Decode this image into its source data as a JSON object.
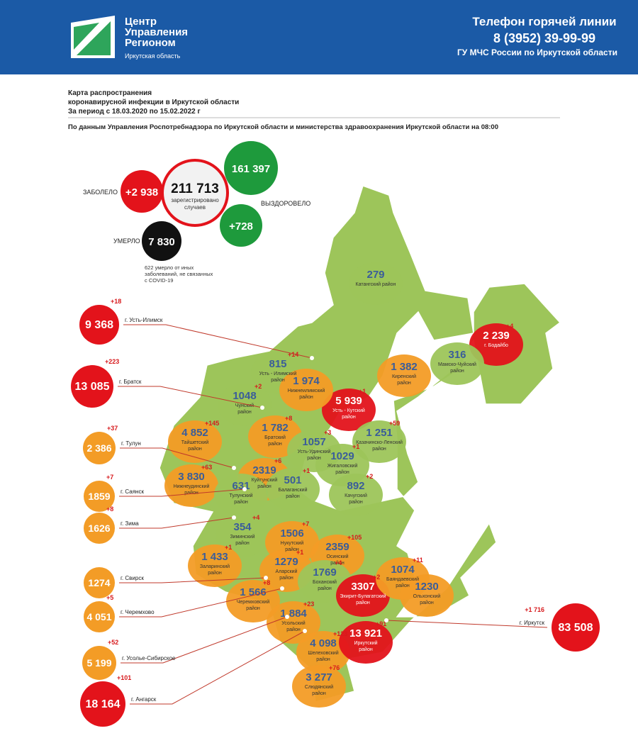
{
  "header": {
    "logo": [
      "Центр",
      "Управления",
      "Регионом"
    ],
    "region": "Иркутская область",
    "hotline_title": "Телефон горячей линии",
    "phone": "8 (3952) 39-99-99",
    "org": "ГУ МЧС России по Иркутской области"
  },
  "title": {
    "lines": [
      "Карта распространения",
      "коронавирусной инфекции в Иркутской области",
      "За период с 18.03.2020 по 15.02.2022 г"
    ],
    "source": "По данным Управления Роспотребнадзора по Иркутской области и министерства здравоохранения Иркутской области на 08:00"
  },
  "summary": {
    "infected_label": "ЗАБОЛЕЛО",
    "infected_new": "+2 938",
    "total": "211 713",
    "total_note": [
      "зарегистрировано",
      "случаев"
    ],
    "recovered": "161 397",
    "recovered_label": "ВЫЗДОРОВЕЛО",
    "recovered_new": "+728",
    "died_label": "УМЕРЛО",
    "died": "7 830",
    "other_deaths": [
      "622 умерло от иных",
      "заболеваний, не связанных",
      "с COVID-19"
    ]
  },
  "districts": [
    {
      "value": "279",
      "name": [
        "Катангский район"
      ]
    },
    {
      "value": "2 239",
      "change": "+4",
      "name": [
        "г. Бодайбо"
      ]
    },
    {
      "value": "316",
      "name": [
        "Мамско-Чуйский",
        "район"
      ]
    },
    {
      "value": "1 382",
      "name": [
        "Киренский",
        "район"
      ]
    },
    {
      "value": "5 939",
      "change": "+1",
      "name": [
        "Усть - Кутский",
        "район"
      ]
    },
    {
      "value": "815",
      "change": "+14",
      "name": [
        "Усть - Илимский",
        "район"
      ]
    },
    {
      "value": "1048",
      "change": "+2",
      "name": [
        "Чунский",
        "район"
      ]
    },
    {
      "value": "1 974",
      "name": [
        "Нижнеилимский",
        "район"
      ]
    },
    {
      "value": "1 782",
      "change": "+8",
      "name": [
        "Братский",
        "район"
      ]
    },
    {
      "value": "1 251",
      "change": "+59",
      "name": [
        "Казачинско-Ленский",
        "район"
      ]
    },
    {
      "value": "4 852",
      "change": "+145",
      "name": [
        "Тайшетский",
        "район"
      ]
    },
    {
      "value": "1057",
      "change": "+3",
      "name": [
        "Усть-Удинский",
        "район"
      ]
    },
    {
      "value": "1029",
      "change": "+1",
      "name": [
        "Жигаловский",
        "район"
      ]
    },
    {
      "value": "3 830",
      "change": "+63",
      "name": [
        "Нижнеудинский",
        "район"
      ]
    },
    {
      "value": "2319",
      "change": "+6",
      "name": [
        "Куйтунский",
        "район"
      ]
    },
    {
      "value": "631",
      "name": [
        "Тулунский",
        "район"
      ]
    },
    {
      "value": "501",
      "change": "+1",
      "name": [
        "Балаганский",
        "район"
      ]
    },
    {
      "value": "892",
      "change": "+2",
      "name": [
        "Качугский",
        "район"
      ]
    },
    {
      "value": "354",
      "change": "+4",
      "name": [
        "Зиминский",
        "район"
      ]
    },
    {
      "value": "1506",
      "change": "+7",
      "name": [
        "Нукутский",
        "район"
      ]
    },
    {
      "value": "2359",
      "change": "+105",
      "name": [
        "Осинский",
        "район"
      ]
    },
    {
      "value": "1 433",
      "change": "+1",
      "name": [
        "Заларинский",
        "район"
      ]
    },
    {
      "value": "1279",
      "change": "+1",
      "name": [
        "Аларский",
        "район"
      ]
    },
    {
      "value": "1769",
      "change": "+4",
      "name": [
        "Боханский",
        "район"
      ]
    },
    {
      "value": "3307",
      "change": "+2",
      "name": [
        "Эхирит-Булагатский",
        "район"
      ]
    },
    {
      "value": "1074",
      "change": "+11",
      "name": [
        "Баяндаевский",
        "район"
      ]
    },
    {
      "value": "1230",
      "name": [
        "Ольхонский",
        "район"
      ]
    },
    {
      "value": "1 566",
      "change": "+8",
      "name": [
        "Черемховский",
        "район"
      ]
    },
    {
      "value": "1 884",
      "change": "+23",
      "name": [
        "Усольский",
        "район"
      ]
    },
    {
      "value": "4 098",
      "change": "+123",
      "name": [
        "Шелеховский",
        "район"
      ]
    },
    {
      "value": "13 921",
      "change": "+91",
      "name": [
        "Иркутский",
        "район"
      ]
    },
    {
      "value": "3 277",
      "change": "+76",
      "name": [
        "Слюдянский",
        "район"
      ]
    }
  ],
  "cities": [
    {
      "value": "9 368",
      "change": "+18",
      "name": "г. Усть-Илимск"
    },
    {
      "value": "13 085",
      "change": "+223",
      "name": "г. Братск"
    },
    {
      "value": "2 386",
      "change": "+37",
      "name": "г. Тулун"
    },
    {
      "value": "1859",
      "change": "+7",
      "name": "г. Саянск"
    },
    {
      "value": "1626",
      "change": "+8",
      "name": "г. Зима"
    },
    {
      "value": "1274",
      "name": "г. Свирск"
    },
    {
      "value": "4 051",
      "change": "+5",
      "name": "г. Черемхово"
    },
    {
      "value": "5 199",
      "change": "+52",
      "name": "г. Усолье-Сибирское"
    },
    {
      "value": "18 164",
      "change": "+101",
      "name": "г. Ангарск"
    },
    {
      "value": "83 508",
      "change": "+1 716",
      "name": "г. Иркутск"
    }
  ]
}
